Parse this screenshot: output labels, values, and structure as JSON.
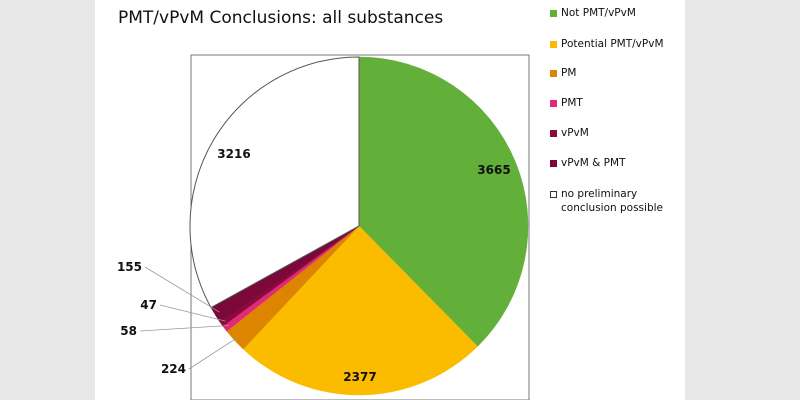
{
  "chart_data": {
    "type": "pie",
    "title": "PMT/vPvM Conclusions: all substances",
    "slices": [
      {
        "label": "Not PMT/vPvM",
        "value": 3665,
        "color": "#62b03a"
      },
      {
        "label": "Potential PMT/vPvM",
        "value": 2377,
        "color": "#fbbc00"
      },
      {
        "label": "PM",
        "value": 224,
        "color": "#dd8400"
      },
      {
        "label": "PMT",
        "value": 58,
        "color": "#e0297a"
      },
      {
        "label": "vPvM",
        "value": 47,
        "color": "#8e0a3c"
      },
      {
        "label": "vPvM & PMT",
        "value": 155,
        "color": "#7a0838"
      },
      {
        "label": "no preliminary conclusion possible",
        "value": 3216,
        "color": "#ffffff"
      }
    ],
    "start_angle": "12 o'clock, clockwise",
    "legend_position": "right",
    "label_style": "values"
  }
}
